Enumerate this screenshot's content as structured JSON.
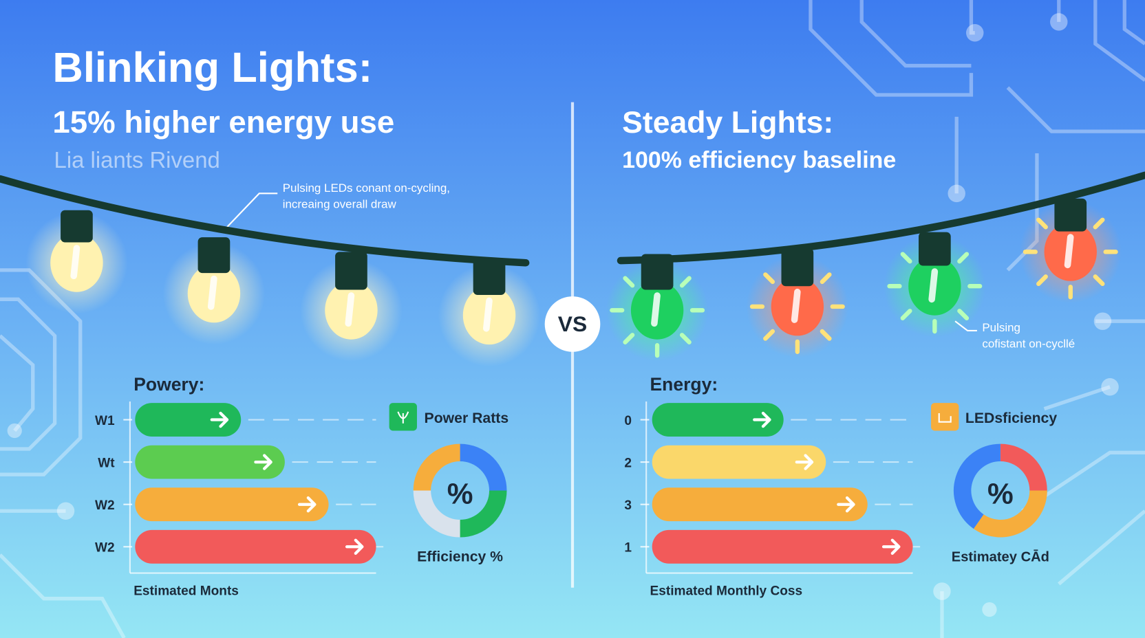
{
  "left": {
    "title": "Blinking Lights:",
    "subtitle": "15% higher energy use",
    "caption": "Lia liants Rivend",
    "annotation": [
      "Pulsing LEDs conant on-cycling,",
      "increaing overall draw"
    ],
    "chart": {
      "heading": "Powery:",
      "labels": [
        "W1",
        "Wt",
        "W2",
        "W2"
      ],
      "legend": "Power Ratts",
      "donut_symbol": "%",
      "donut_label": "Efficiency %",
      "footer": "Estimated Monts"
    }
  },
  "vs": "VS",
  "right": {
    "title": "Steady Lights:",
    "subtitle": "100% efficiency baseline",
    "annotation": [
      "Pulsing",
      "cofistant on-cycllé"
    ],
    "chart": {
      "heading": "Energy:",
      "labels": [
        "0",
        "2",
        "3",
        "1"
      ],
      "legend": "LEDsficiency",
      "donut_symbol": "%",
      "donut_label": "Estimatey CĀd",
      "footer": "Estimated Monthly Coss"
    }
  }
}
